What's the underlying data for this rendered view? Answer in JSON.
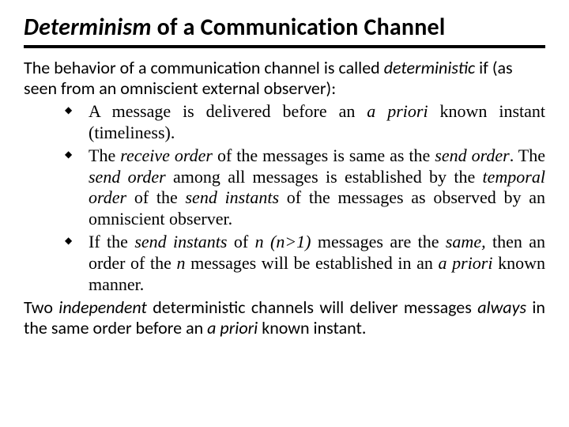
{
  "colors": {
    "background": "#ffffff",
    "text": "#000000",
    "rule": "#000000"
  },
  "fonts": {
    "title_family": "Calibri",
    "body_sans_family": "Calibri",
    "body_serif_family": "Times New Roman",
    "title_size_pt": 30,
    "body_size_pt": 22,
    "bullet_glyph": "◆"
  },
  "title": {
    "part_italic": "Determinism",
    "part_plain": " of a Communication Channel"
  },
  "intro": {
    "t1": "The behavior of a communication channel is called ",
    "t2_italic": "deterministic",
    "t3": " if (as seen from an omniscient external observer):"
  },
  "bullets": [
    {
      "s0": "A message is delivered before an ",
      "s1_italic": "a priori",
      "s2": " known instant (timeliness)."
    },
    {
      "s0": "The ",
      "s1_italic": "receive order",
      "s2": " of the messages is same as the ",
      "s3_italic": "send order",
      "s4": ". The ",
      "s5_italic": "send order",
      "s6": " among all messages is established by the ",
      "s7_italic": "temporal order",
      "s8": " of the ",
      "s9_italic": "send instants",
      "s10": " of the messages as observed by an omniscient observer."
    },
    {
      "s0": "If the ",
      "s1_italic": "send instants",
      "s2": " of ",
      "s3_italic": " n (n>1)",
      "s4": " messages are the ",
      "s5_italic": "same,",
      "s6": "  then an order of the  ",
      "s7_italic": "n",
      "s8": " messages will be established in an ",
      "s9_italic": "a priori",
      "s10": " known manner."
    }
  ],
  "closing": {
    "t0": "Two ",
    "t1_italic": "independent",
    "t2": " deterministic channels will deliver messages ",
    "t3_italic": "always",
    "t4": " in the same order before an ",
    "t5_italic": "a priori",
    "t6": " known instant."
  }
}
